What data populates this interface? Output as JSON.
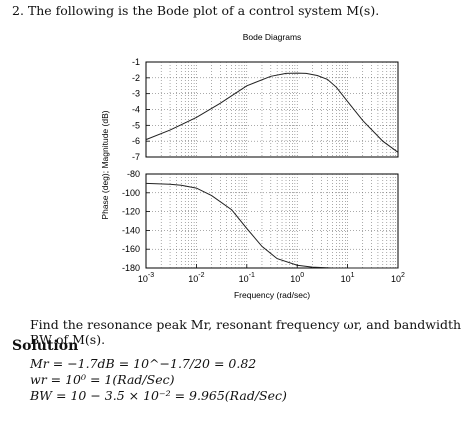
{
  "problem": "2. The following is the Bode plot of a control system M(s).",
  "question": "Find the resonance peak Mr, resonant frequency ωr, and bandwidth BW of M(s).",
  "solution": {
    "heading": "Solution",
    "lines": [
      "Mr = −1.7dB = 10^−1.7/20 = 0.82",
      "wr = 10⁰ = 1(Rad/Sec)",
      "BW = 10 − 3.5 × 10⁻² = 9.965(Rad/Sec)"
    ]
  },
  "chart_data": [
    {
      "type": "line",
      "title": "Bode Diagrams",
      "xlabel": "",
      "ylabel": "Phase (deg); Magnitude (dB)",
      "xscale": "log",
      "xlim": [
        0.001,
        100
      ],
      "ylim": [
        -7,
        -1
      ],
      "yticks": [
        "-1",
        "-2",
        "-3",
        "-4",
        "-5",
        "-6",
        "-7"
      ],
      "grid": true,
      "series": [
        {
          "x": [
            0.001,
            0.003,
            0.01,
            0.03,
            0.1,
            0.3,
            0.6,
            1,
            1.5,
            2.5,
            4,
            6,
            10,
            20,
            50,
            100
          ],
          "values": [
            -5.9,
            -5.3,
            -4.5,
            -3.6,
            -2.5,
            -1.9,
            -1.72,
            -1.7,
            -1.72,
            -1.85,
            -2.1,
            -2.6,
            -3.5,
            -4.7,
            -6.0,
            -6.7
          ]
        }
      ]
    },
    {
      "type": "line",
      "title": "",
      "xlabel": "Frequency (rad/sec)",
      "ylabel": "",
      "xscale": "log",
      "xlim": [
        0.001,
        100
      ],
      "xticks": [
        "10^-3",
        "10^-2",
        "10^-1",
        "10^0",
        "10^1",
        "10^2"
      ],
      "ylim": [
        -180,
        -80
      ],
      "yticks": [
        "-80",
        "-100",
        "-120",
        "-140",
        "-160",
        "-180"
      ],
      "grid": true,
      "series": [
        {
          "x": [
            0.001,
            0.003,
            0.005,
            0.01,
            0.02,
            0.05,
            0.1,
            0.2,
            0.4,
            1,
            2,
            5,
            10,
            100
          ],
          "values": [
            -90,
            -91,
            -92,
            -95,
            -103,
            -118,
            -138,
            -157,
            -170,
            -177,
            -179,
            -180,
            -180,
            -180
          ]
        }
      ]
    }
  ]
}
